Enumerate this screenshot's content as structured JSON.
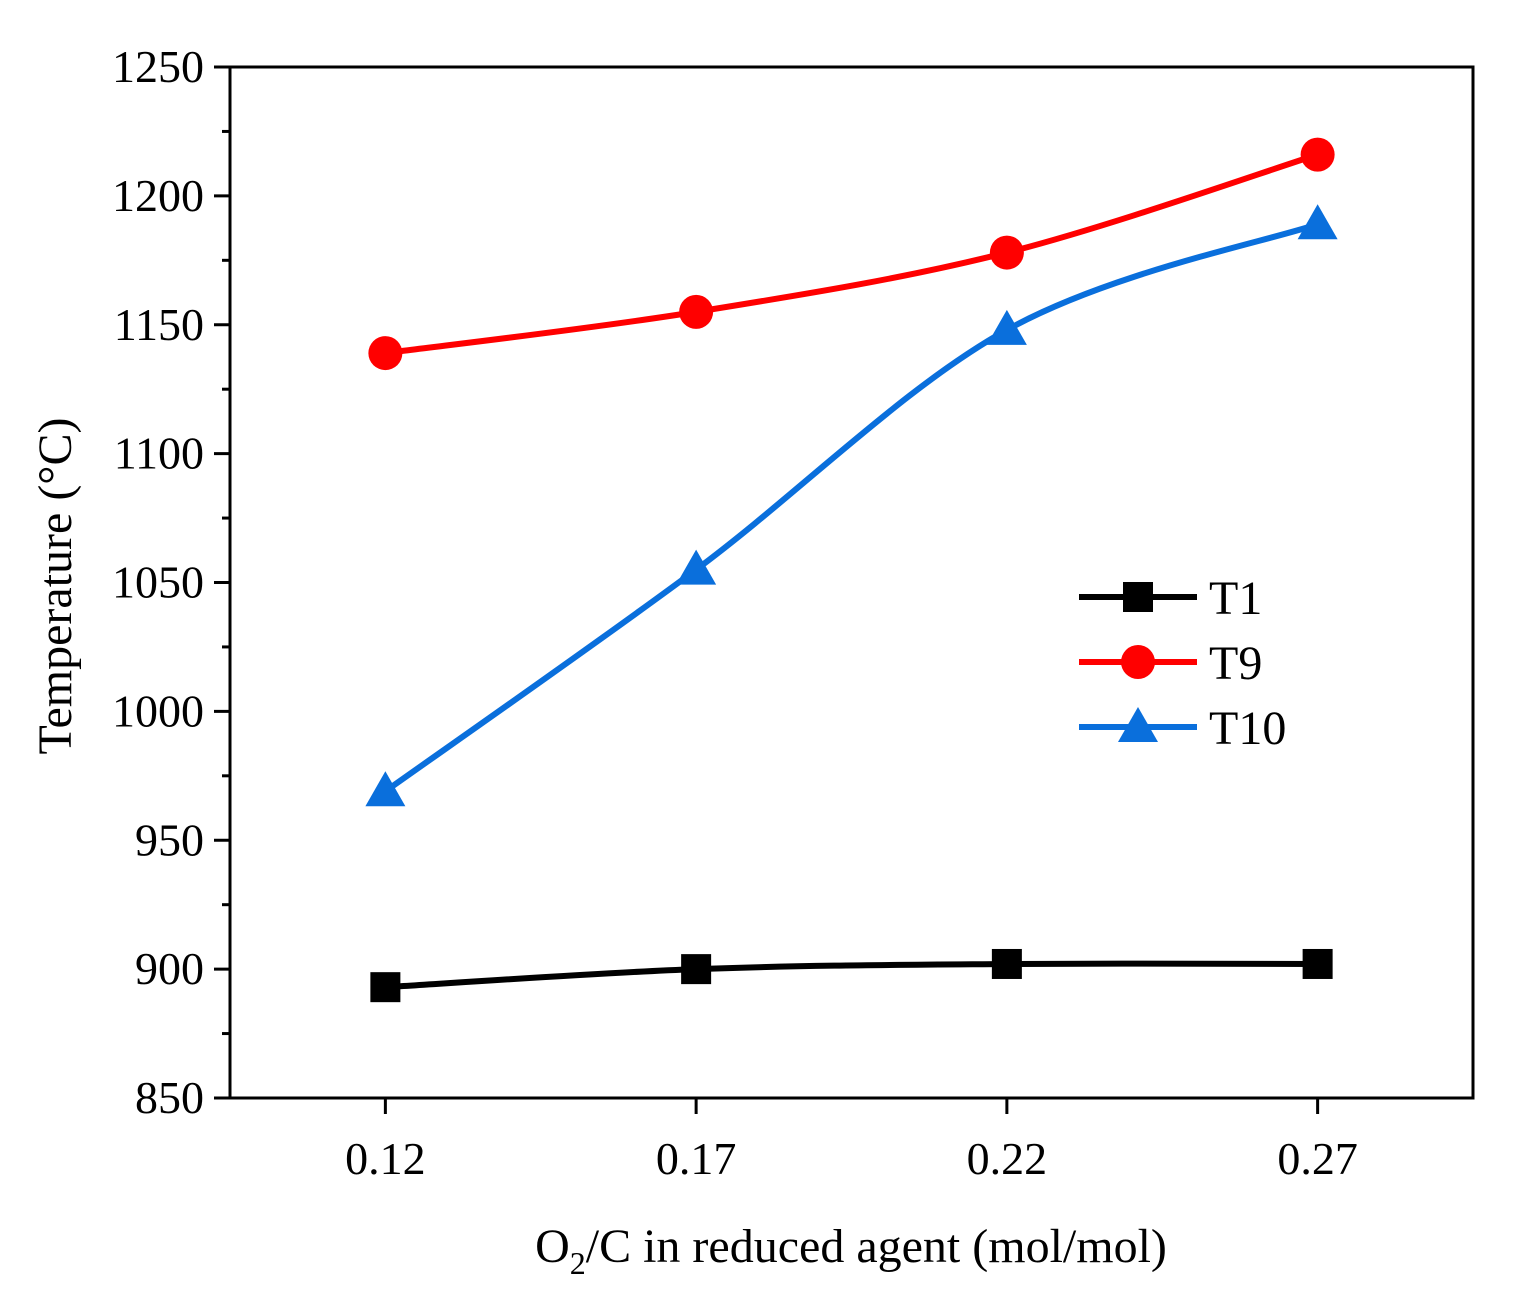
{
  "chart_data": {
    "type": "line",
    "title": "",
    "xlabel": "O2/C in reduced agent (mol/mol)",
    "xlabel_parts": {
      "pre": "O",
      "sub": "2",
      "post": "/C in reduced agent (mol/mol)"
    },
    "ylabel": "Temperature (°C)",
    "x": [
      0.12,
      0.17,
      0.22,
      0.27
    ],
    "x_tick_labels": [
      "0.12",
      "0.17",
      "0.22",
      "0.27"
    ],
    "xlim": [
      0.095,
      0.295
    ],
    "ylim": [
      850,
      1250
    ],
    "y_ticks": [
      850,
      900,
      950,
      1000,
      1050,
      1100,
      1150,
      1200,
      1250
    ],
    "y_tick_labels": [
      "850",
      "900",
      "950",
      "1000",
      "1050",
      "1100",
      "1150",
      "1200",
      "1250"
    ],
    "grid": false,
    "legend_position": "right-middle",
    "series": [
      {
        "name": "T1",
        "color": "#000000",
        "marker": "square",
        "values": [
          893,
          900,
          902,
          902
        ]
      },
      {
        "name": "T9",
        "color": "#ff0000",
        "marker": "circle",
        "values": [
          1139,
          1155,
          1178,
          1216
        ]
      },
      {
        "name": "T10",
        "color": "#0a6fdc",
        "marker": "triangle",
        "values": [
          969,
          1055,
          1148,
          1189
        ]
      }
    ]
  }
}
